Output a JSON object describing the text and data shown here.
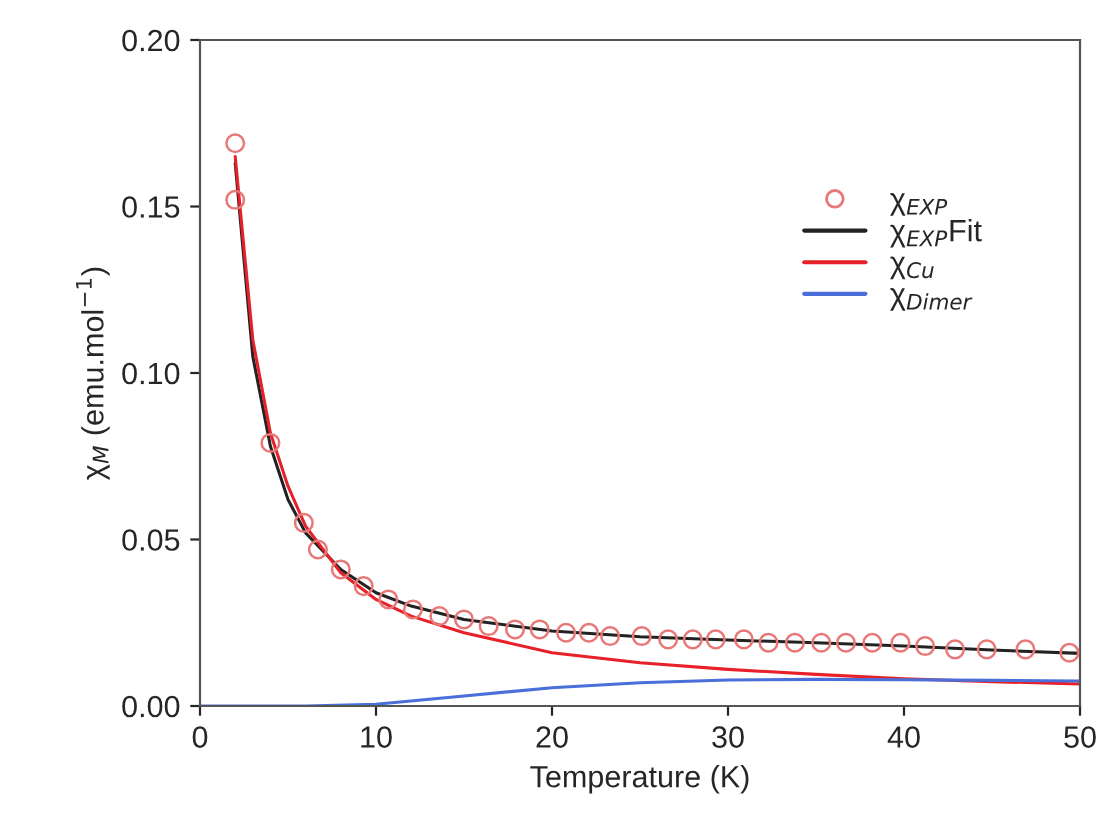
{
  "chart_data": {
    "type": "line",
    "xlabel": "Temperature (K)",
    "ylabel": "χ$_{M}$ (emu.mol$^{−1}$)",
    "xlim": [
      0,
      50
    ],
    "xticks": [
      0,
      10,
      20,
      30,
      40,
      50
    ],
    "ylim": [
      0,
      0.2
    ],
    "yticks": [
      {
        "value": 0,
        "label": "0.00"
      },
      {
        "value": 0.05,
        "label": "0.05"
      },
      {
        "value": 0.1,
        "label": "0.10"
      },
      {
        "value": 0.15,
        "label": "0.15"
      },
      {
        "value": 0.2,
        "label": "0.20"
      }
    ],
    "grid": false,
    "legend": "top right",
    "series": [
      {
        "name": "χ$_{EXP}$",
        "type": "scatter",
        "marker": "circle",
        "color": "#e87878",
        "x": [
          2,
          2,
          4,
          5.9,
          6.7,
          8,
          9.3,
          10.7,
          12.1,
          13.6,
          15,
          16.4,
          17.9,
          19.3,
          20.8,
          22.1,
          23.3,
          25.1,
          26.6,
          28,
          29.3,
          30.9,
          32.3,
          33.8,
          35.3,
          36.7,
          38.2,
          39.8,
          41.2,
          42.9,
          44.7,
          46.9,
          49.4
        ],
        "values": [
          0.169,
          0.152,
          0.079,
          0.055,
          0.047,
          0.041,
          0.036,
          0.032,
          0.029,
          0.027,
          0.026,
          0.024,
          0.023,
          0.023,
          0.022,
          0.022,
          0.021,
          0.021,
          0.02,
          0.02,
          0.02,
          0.02,
          0.019,
          0.019,
          0.019,
          0.019,
          0.019,
          0.019,
          0.018,
          0.017,
          0.017,
          0.017,
          0.016
        ]
      },
      {
        "name": "χ$_{EXP}$Fit",
        "color": "#222222",
        "x": [
          2,
          3,
          4,
          5,
          6,
          8,
          10,
          12,
          15,
          20,
          25,
          30,
          35,
          40,
          45,
          50
        ],
        "values": [
          0.163,
          0.105,
          0.078,
          0.062,
          0.052,
          0.041,
          0.034,
          0.03,
          0.026,
          0.0225,
          0.0208,
          0.0198,
          0.019,
          0.018,
          0.0168,
          0.0158
        ]
      },
      {
        "name": "χ$_{Cu}$",
        "color": "#e8202a",
        "x": [
          2,
          3,
          4,
          5,
          6,
          8,
          10,
          12,
          15,
          20,
          25,
          30,
          35,
          40,
          45,
          50
        ],
        "values": [
          0.165,
          0.11,
          0.082,
          0.066,
          0.054,
          0.04,
          0.032,
          0.027,
          0.022,
          0.016,
          0.013,
          0.011,
          0.0095,
          0.0082,
          0.0073,
          0.0066
        ]
      },
      {
        "name": "χ$_{Dimer}$",
        "color": "#4a6fd8",
        "x": [
          0,
          6,
          10,
          15,
          20,
          25,
          30,
          35,
          40,
          45,
          50
        ],
        "values": [
          0,
          0,
          0.0005,
          0.003,
          0.0055,
          0.007,
          0.0078,
          0.008,
          0.0079,
          0.0077,
          0.0075
        ]
      }
    ]
  }
}
